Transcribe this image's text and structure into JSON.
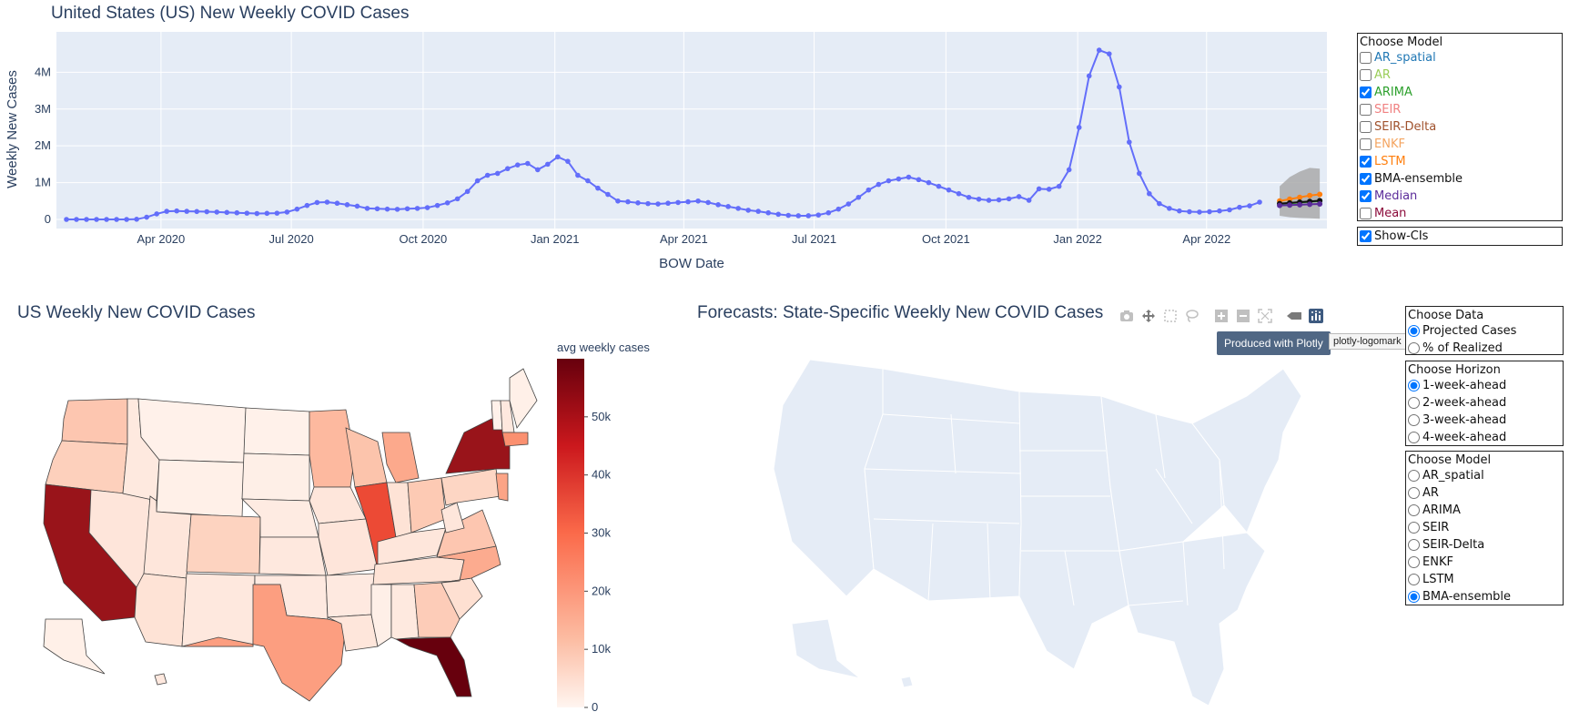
{
  "top_chart": {
    "title": "United States (US) New Weekly COVID Cases",
    "ylabel": "Weekly New Cases",
    "xlabel": "BOW Date",
    "y_ticks": [
      "0",
      "1M",
      "2M",
      "3M",
      "4M"
    ],
    "x_ticks": [
      "Apr 2020",
      "Jul 2020",
      "Oct 2020",
      "Jan 2021",
      "Apr 2021",
      "Jul 2021",
      "Oct 2021",
      "Jan 2022",
      "Apr 2022"
    ],
    "colors": {
      "observed": "#636efa",
      "plot_bg": "#e5ecf6",
      "ci": "#aaaaaa",
      "arima": "#2ca02c",
      "lstm": "#ff7f0e",
      "bma": "#111111",
      "median": "#5b2c9a"
    }
  },
  "chart_data": {
    "type": "line",
    "title": "United States (US) New Weekly COVID Cases",
    "xlabel": "BOW Date",
    "ylabel": "Weekly New Cases",
    "ylim": [
      0,
      4800000
    ],
    "x_range": [
      "2020-01-19",
      "2022-06-24"
    ],
    "series": [
      {
        "x_start": "2020-01-26",
        "x_step_days": 7,
        "values": [
          0,
          0,
          0,
          0,
          0,
          0,
          0,
          5000,
          60000,
          150000,
          220000,
          230000,
          220000,
          215000,
          210000,
          200000,
          190000,
          180000,
          170000,
          160000,
          165000,
          170000,
          200000,
          280000,
          380000,
          460000,
          470000,
          440000,
          400000,
          360000,
          300000,
          290000,
          280000,
          275000,
          290000,
          300000,
          320000,
          380000,
          450000,
          560000,
          760000,
          1050000,
          1200000,
          1250000,
          1380000,
          1480000,
          1520000,
          1350000,
          1500000,
          1700000,
          1580000,
          1200000,
          1050000,
          850000,
          680000,
          500000,
          480000,
          450000,
          430000,
          420000,
          440000,
          460000,
          480000,
          500000,
          460000,
          400000,
          350000,
          300000,
          250000,
          220000,
          180000,
          140000,
          110000,
          100000,
          100000,
          120000,
          180000,
          280000,
          420000,
          600000,
          800000,
          950000,
          1050000,
          1100000,
          1150000,
          1080000,
          1000000,
          900000,
          800000,
          700000,
          600000,
          550000,
          520000,
          530000,
          560000,
          620000,
          520000,
          830000,
          820000,
          900000,
          1350000,
          2500000,
          3900000,
          4600000,
          4500000,
          3600000,
          2100000,
          1250000,
          700000,
          430000,
          300000,
          230000,
          210000,
          200000,
          210000,
          230000,
          260000,
          330000,
          370000,
          470000
        ]
      },
      {
        "name": "ARIMA",
        "x_start": "2022-05-22",
        "x_step_days": 7,
        "values": [
          420000,
          440000,
          460000,
          480000,
          500000
        ]
      },
      {
        "name": "LSTM",
        "x_start": "2022-05-22",
        "x_step_days": 7,
        "values": [
          500000,
          550000,
          600000,
          650000,
          680000
        ]
      },
      {
        "name": "BMA-ensemble",
        "x_start": "2022-05-22",
        "x_step_days": 7,
        "values": [
          430000,
          450000,
          470000,
          490000,
          510000
        ]
      },
      {
        "name": "Median",
        "x_start": "2022-05-22",
        "x_step_days": 7,
        "values": [
          380000,
          390000,
          400000,
          410000,
          420000
        ]
      }
    ]
  },
  "model_panel": {
    "header": "Choose Model",
    "options": [
      {
        "label": "AR_spatial",
        "checked": false,
        "color": "#1f77b4"
      },
      {
        "label": "AR",
        "checked": false,
        "color": "#9acd58"
      },
      {
        "label": "ARIMA",
        "checked": true,
        "color": "#2ca02c"
      },
      {
        "label": "SEIR",
        "checked": false,
        "color": "#f08080"
      },
      {
        "label": "SEIR-Delta",
        "checked": false,
        "color": "#a0522d"
      },
      {
        "label": "ENKF",
        "checked": false,
        "color": "#f4a460"
      },
      {
        "label": "LSTM",
        "checked": true,
        "color": "#ff7f0e"
      },
      {
        "label": "BMA-ensemble",
        "checked": true,
        "color": "#111111"
      },
      {
        "label": "Median",
        "checked": true,
        "color": "#5b2c9a"
      },
      {
        "label": "Mean",
        "checked": false,
        "color": "#8b0a3a"
      }
    ]
  },
  "ci_panel": {
    "label": "Show-CIs",
    "checked": true
  },
  "left_map": {
    "title": "US Weekly New COVID Cases",
    "colorbar_title": "avg weekly cases",
    "colorbar_ticks": [
      "0",
      "10k",
      "20k",
      "30k",
      "40k",
      "50k"
    ],
    "colorbar_max": 60000,
    "colorbar_colors": [
      "#fff5f0",
      "#fcbba1",
      "#fb6a4a",
      "#cb181d",
      "#67000d"
    ]
  },
  "right_map": {
    "title": "Forecasts: State-Specific Weekly New COVID Cases",
    "land_color": "#e5ecf6"
  },
  "modebar": {
    "icons": [
      "camera-icon",
      "pan-icon",
      "box-select-icon",
      "lasso-icon",
      "zoom-in-icon",
      "zoom-out-icon",
      "autoscale-icon",
      "reset-icon",
      "plotly-logo-icon"
    ],
    "tooltip": "Produced with Plotly",
    "hover_label": "plotly-logomark"
  },
  "data_panel": {
    "header": "Choose Data",
    "options": [
      {
        "label": "Projected Cases",
        "checked": true
      },
      {
        "label": "% of Realized",
        "checked": false
      }
    ]
  },
  "horizon_panel": {
    "header": "Choose Horizon",
    "options": [
      {
        "label": "1-week-ahead",
        "checked": true
      },
      {
        "label": "2-week-ahead",
        "checked": false
      },
      {
        "label": "3-week-ahead",
        "checked": false
      },
      {
        "label": "4-week-ahead",
        "checked": false
      }
    ]
  },
  "model_radio_panel": {
    "header": "Choose Model",
    "options": [
      {
        "label": "AR_spatial",
        "checked": false
      },
      {
        "label": "AR",
        "checked": false
      },
      {
        "label": "ARIMA",
        "checked": false
      },
      {
        "label": "SEIR",
        "checked": false
      },
      {
        "label": "SEIR-Delta",
        "checked": false
      },
      {
        "label": "ENKF",
        "checked": false
      },
      {
        "label": "LSTM",
        "checked": false
      },
      {
        "label": "BMA-ensemble",
        "checked": true
      }
    ]
  }
}
